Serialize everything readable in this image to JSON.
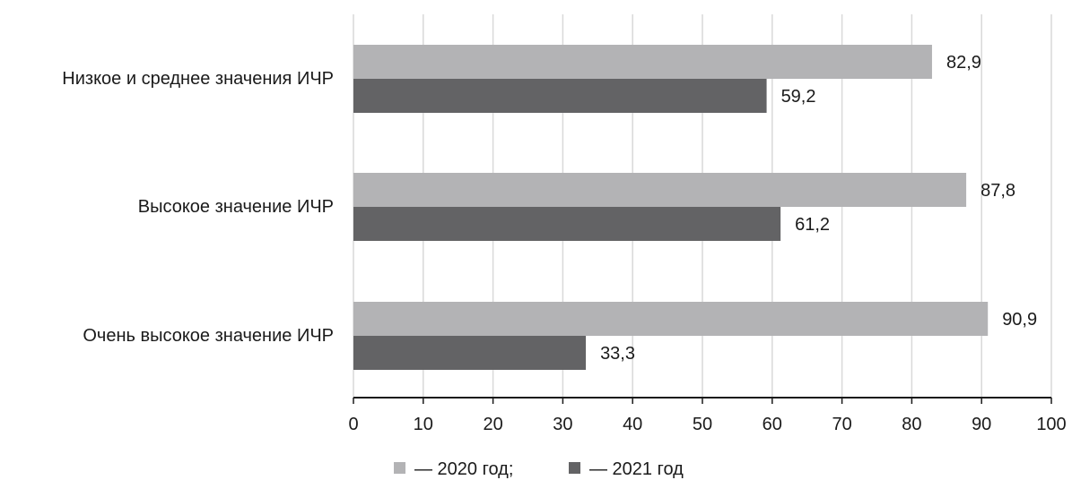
{
  "chart_data": {
    "type": "bar",
    "orientation": "horizontal",
    "categories": [
      "Низкое и среднее значения ИЧР",
      "Высокое значение ИЧР",
      "Очень высокое значение ИЧР"
    ],
    "series": [
      {
        "name": "— 2020 год;",
        "color": "#b3b3b5",
        "values": [
          82.9,
          87.8,
          90.9
        ],
        "labels": [
          "82,9",
          "87,8",
          "90,9"
        ]
      },
      {
        "name": "— 2021 год",
        "color": "#636365",
        "values": [
          59.2,
          61.2,
          33.3
        ],
        "labels": [
          "59,2",
          "61,2",
          "33,3"
        ]
      }
    ],
    "xlim": [
      0,
      100
    ],
    "xticks": [
      0,
      10,
      20,
      30,
      40,
      50,
      60,
      70,
      80,
      90,
      100
    ],
    "xtick_labels": [
      "0",
      "10",
      "20",
      "30",
      "40",
      "50",
      "60",
      "70",
      "80",
      "90",
      "100"
    ],
    "grid": "vertical",
    "gridline_color": "#d9d9d9",
    "legend_position": "bottom-center"
  }
}
